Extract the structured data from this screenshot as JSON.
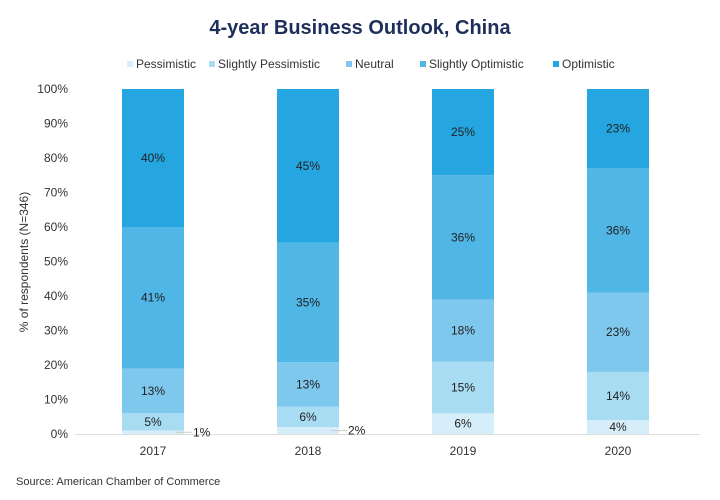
{
  "chart_data": {
    "type": "bar",
    "stacked": true,
    "title": "4-year Business Outlook, China",
    "ylabel": "% of respondents (N=346)",
    "xlabel": "",
    "ylim": [
      0,
      100
    ],
    "yticks": [
      "0%",
      "10%",
      "20%",
      "30%",
      "40%",
      "50%",
      "60%",
      "70%",
      "80%",
      "90%",
      "100%"
    ],
    "categories": [
      "2017",
      "2018",
      "2019",
      "2020"
    ],
    "series": [
      {
        "name": "Pessimistic",
        "color": "#d6eef9",
        "values": [
          1,
          2,
          6,
          4
        ],
        "labels": [
          "1%",
          "2%",
          "6%",
          "4%"
        ]
      },
      {
        "name": "Slightly Pessimistic",
        "color": "#a8dcf3",
        "values": [
          5,
          6,
          15,
          14
        ],
        "labels": [
          "5%",
          "6%",
          "15%",
          "14%"
        ]
      },
      {
        "name": "Neutral",
        "color": "#7dc8ec",
        "values": [
          13,
          13,
          18,
          23
        ],
        "labels": [
          "13%",
          "13%",
          "18%",
          "23%"
        ]
      },
      {
        "name": "Slightly Optimistic",
        "color": "#4fb6e6",
        "values": [
          41,
          35,
          36,
          36
        ],
        "labels": [
          "41%",
          "35%",
          "36%",
          "36%"
        ]
      },
      {
        "name": "Optimistic",
        "color": "#25a6e0",
        "values": [
          40,
          45,
          25,
          23
        ],
        "labels": [
          "40%",
          "45%",
          "25%",
          "23%"
        ]
      }
    ],
    "legend_position": "top",
    "source": "Source: American Chamber of Commerce"
  }
}
